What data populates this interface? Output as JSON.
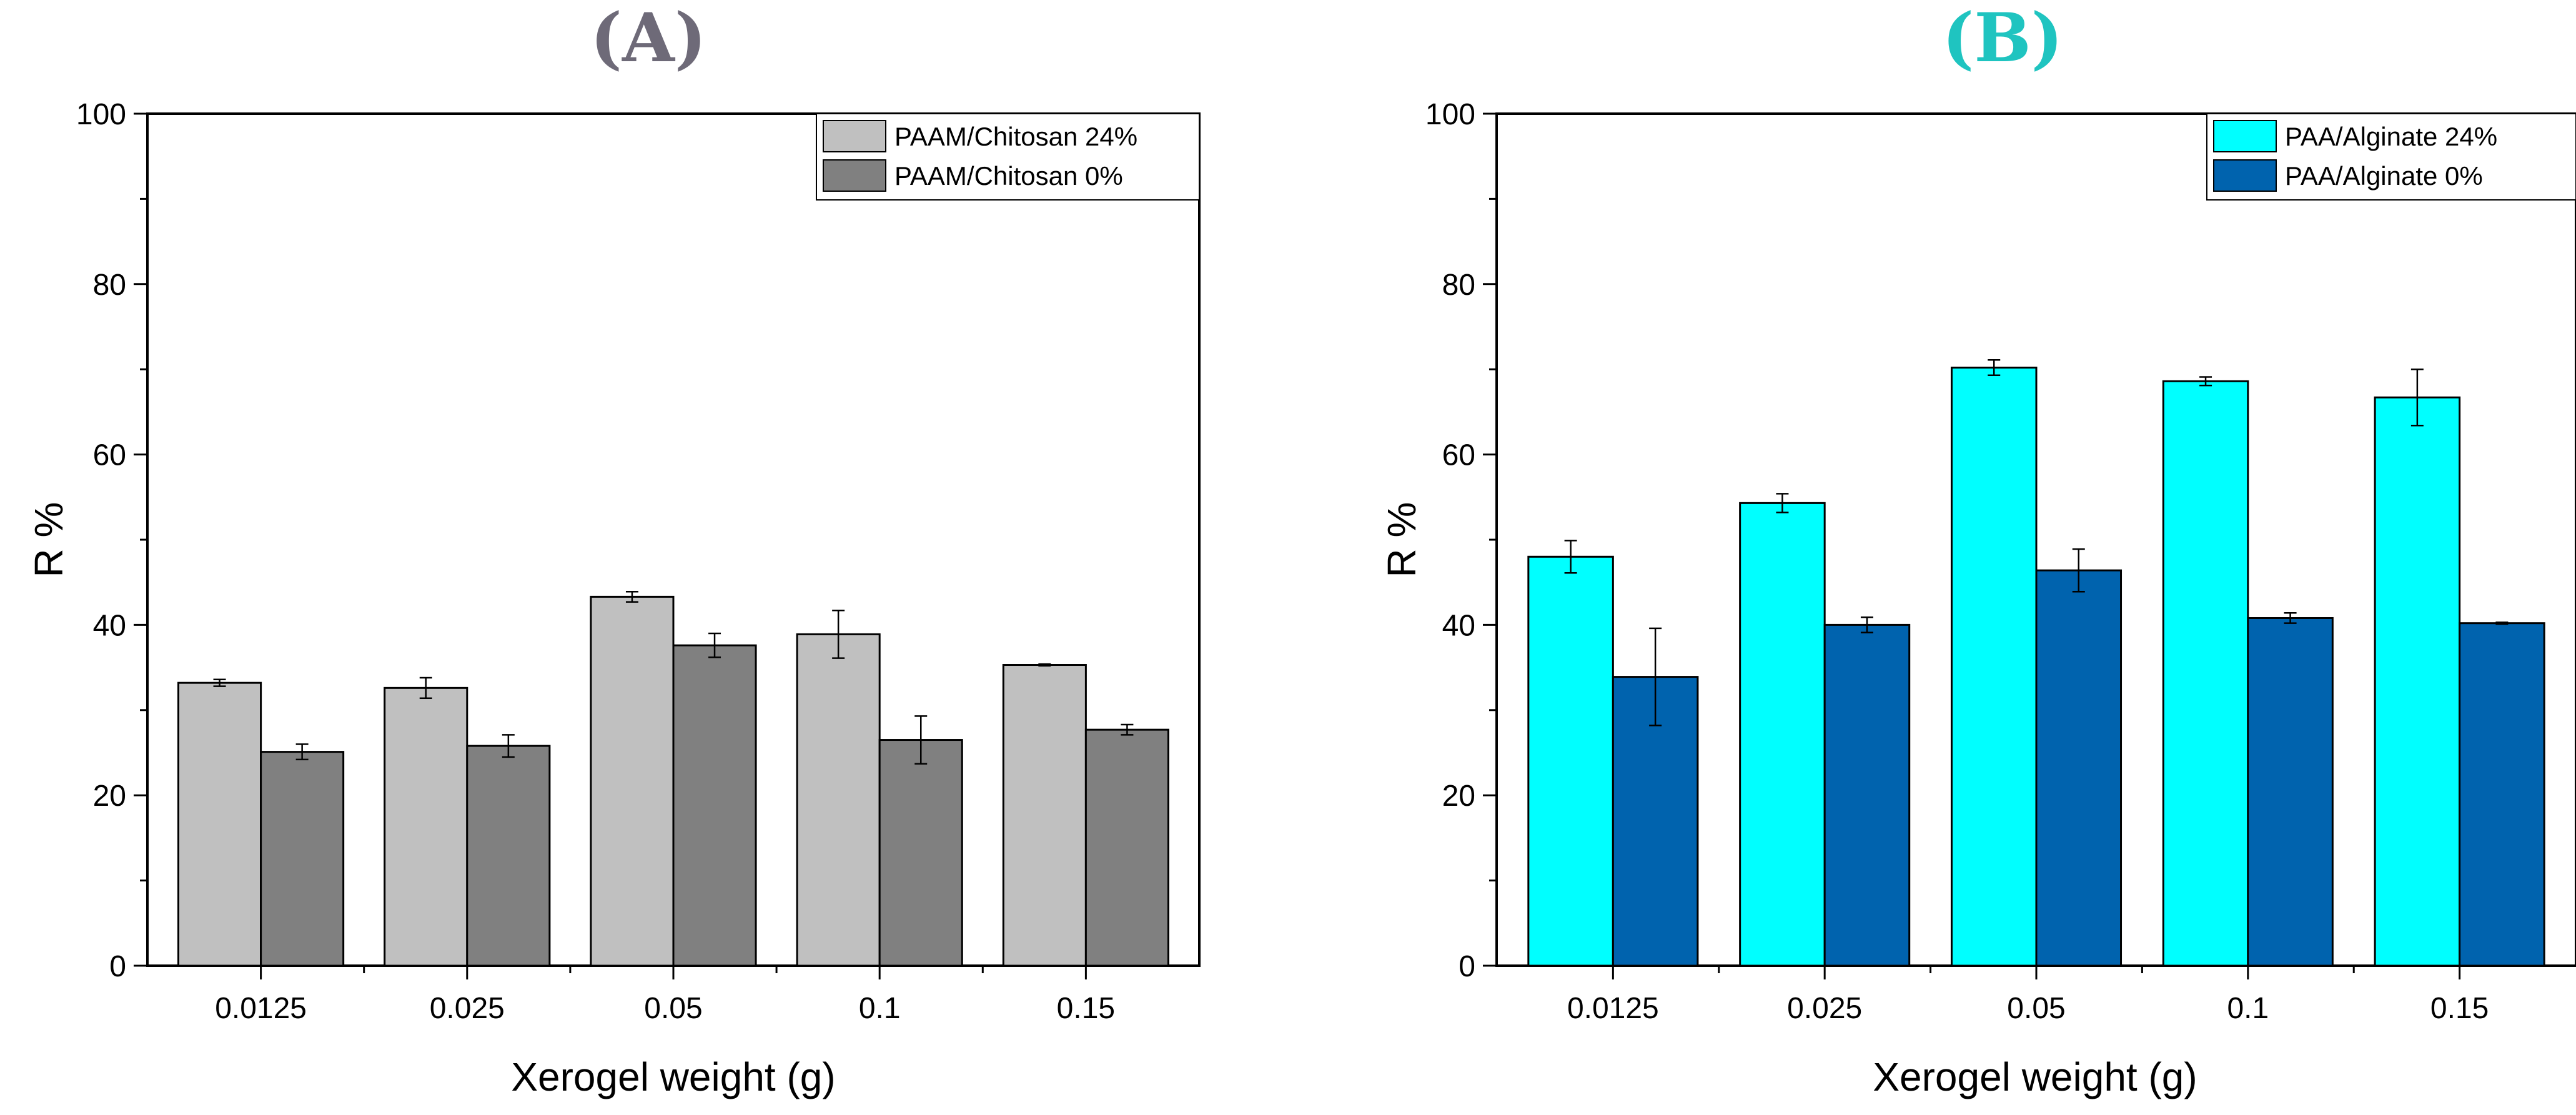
{
  "chart_data": [
    {
      "type": "bar",
      "panel_label": "(A)",
      "panel_label_color": "#6e6a78",
      "categories": [
        "0.0125",
        "0.025",
        "0.05",
        "0.1",
        "0.15"
      ],
      "series": [
        {
          "name": "PAAM/Chitosan 24%",
          "color": "#c0c0c0",
          "values": [
            33.2,
            32.6,
            43.3,
            38.9,
            35.3
          ],
          "errors": [
            0.4,
            1.2,
            0.6,
            2.8,
            0.1
          ]
        },
        {
          "name": "PAAM/Chitosan 0%",
          "color": "#808080",
          "values": [
            25.1,
            25.8,
            37.6,
            26.5,
            27.7
          ],
          "errors": [
            0.9,
            1.3,
            1.4,
            2.8,
            0.6
          ]
        }
      ],
      "xlabel": "Xerogel weight (g)",
      "ylabel": "R %",
      "ylim": [
        0,
        100
      ],
      "yticks": [
        0,
        20,
        40,
        60,
        80,
        100
      ],
      "legend_position": "top-right",
      "grid": false
    },
    {
      "type": "bar",
      "panel_label": "(B)",
      "panel_label_color": "#1fc4c0",
      "categories": [
        "0.0125",
        "0.025",
        "0.05",
        "0.1",
        "0.15"
      ],
      "series": [
        {
          "name": "PAA/Alginate 24%",
          "color": "#00ffff",
          "values": [
            48.0,
            54.3,
            70.2,
            68.6,
            66.7
          ],
          "errors": [
            1.9,
            1.1,
            0.9,
            0.5,
            3.3
          ]
        },
        {
          "name": "PAA/Alginate 0%",
          "color": "#0063ae",
          "values": [
            33.9,
            40.0,
            46.4,
            40.8,
            40.2
          ],
          "errors": [
            5.7,
            0.9,
            2.5,
            0.6,
            0.1
          ]
        }
      ],
      "xlabel": "Xerogel weight (g)",
      "ylabel": "R %",
      "ylim": [
        0,
        100
      ],
      "yticks": [
        0,
        20,
        40,
        60,
        80,
        100
      ],
      "legend_position": "top-right",
      "grid": false
    }
  ]
}
